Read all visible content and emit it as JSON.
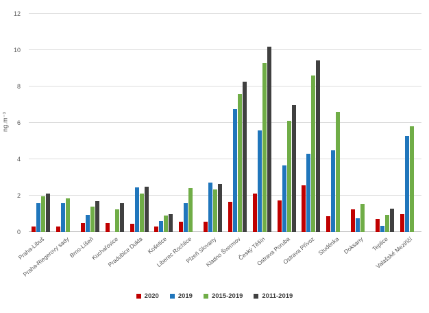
{
  "chart_data": {
    "type": "bar",
    "title": "",
    "xlabel": "",
    "ylabel": "ng.m⁻³",
    "ylim": [
      0,
      12
    ],
    "yticks": [
      0,
      2,
      4,
      6,
      8,
      10,
      12
    ],
    "grid": true,
    "legend_position": "bottom-center",
    "categories": [
      "Praha-Libuš",
      "Praha-Riegerovy sady",
      "Brno-Líšeň",
      "Kuchařovice",
      "Pradubice Dukla",
      "Košetice",
      "Liberec Rochlice",
      "Plzeň Slovany",
      "Kladno Švermov",
      "Český Těšín",
      "Ostrava Poruba",
      "Ostrava Přívoz",
      "Studénka",
      "Doksany",
      "Teplice",
      "Valašské Meziříčí"
    ],
    "series": [
      {
        "name": "2020",
        "color": "#C00000",
        "values": [
          0.3,
          0.3,
          0.5,
          0.5,
          0.45,
          0.3,
          0.55,
          0.55,
          1.65,
          2.1,
          1.75,
          2.55,
          0.85,
          1.25,
          0.7,
          1.0
        ]
      },
      {
        "name": "2019",
        "color": "#2076BC",
        "values": [
          1.6,
          1.6,
          0.95,
          null,
          2.45,
          0.6,
          1.6,
          2.7,
          6.75,
          5.6,
          3.65,
          4.3,
          4.5,
          0.75,
          0.35,
          5.3
        ]
      },
      {
        "name": "2015-2019",
        "color": "#70AD47",
        "values": [
          1.95,
          1.85,
          1.4,
          1.25,
          2.1,
          0.9,
          2.4,
          2.35,
          7.6,
          9.3,
          6.1,
          8.6,
          6.6,
          1.55,
          0.95,
          5.8
        ]
      },
      {
        "name": "2011-2019",
        "color": "#404040",
        "values": [
          2.1,
          null,
          1.7,
          1.6,
          2.5,
          1.0,
          null,
          2.65,
          8.25,
          10.2,
          7.0,
          9.45,
          null,
          null,
          1.3,
          null
        ]
      }
    ]
  },
  "colors": {
    "gridline": "#DCDCDC",
    "axis_line": "#BFBFBF",
    "tick_text": "#595959",
    "legend_text": "#404040"
  }
}
